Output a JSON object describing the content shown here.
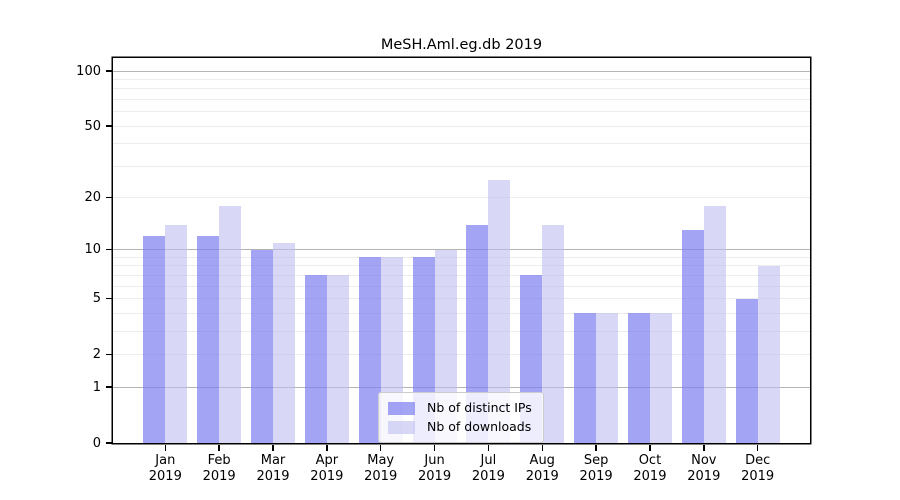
{
  "figure": {
    "background": "#ffffff",
    "title": "MeSH.Aml.eg.db 2019"
  },
  "chart_data": {
    "type": "bar",
    "title": "MeSH.Aml.eg.db 2019",
    "categories": [
      "Jan 2019",
      "Feb 2019",
      "Mar 2019",
      "Apr 2019",
      "May 2019",
      "Jun 2019",
      "Jul 2019",
      "Aug 2019",
      "Sep 2019",
      "Oct 2019",
      "Nov 2019",
      "Dec 2019"
    ],
    "x_months": [
      "Jan",
      "Feb",
      "Mar",
      "Apr",
      "May",
      "Jun",
      "Jul",
      "Aug",
      "Sep",
      "Oct",
      "Nov",
      "Dec"
    ],
    "x_year": "2019",
    "series": [
      {
        "name": "Nb of distinct IPs",
        "values": [
          12,
          12,
          10,
          7,
          9,
          9,
          14,
          7,
          4,
          4,
          13,
          5
        ],
        "color": "#7d7df0",
        "fill_alpha": 0.7,
        "apparent_color": "#a5a5f5"
      },
      {
        "name": "Nb of downloads",
        "values": [
          14,
          18,
          11,
          7,
          9,
          10,
          25,
          14,
          4,
          4,
          18,
          8
        ],
        "color": "#bebef0",
        "fill_alpha": 0.6,
        "apparent_color": "#d8d8f8"
      }
    ],
    "xlabel": "",
    "ylabel": "",
    "yscale": "log1p",
    "ylim": [
      0,
      117
    ],
    "yticks": [
      100,
      50,
      20,
      10,
      5,
      2,
      1,
      0
    ],
    "grid": {
      "on": true,
      "major_lines": [
        1,
        10,
        100
      ],
      "minor_lines": [
        2,
        3,
        4,
        5,
        6,
        7,
        8,
        9,
        20,
        30,
        40,
        50,
        60,
        70,
        80,
        90
      ],
      "major_color": "#b4b4b4",
      "minor_color": "#ececec"
    },
    "legend": {
      "position": "lower-center",
      "entries": [
        "Nb of distinct IPs",
        "Nb of downloads"
      ]
    }
  }
}
